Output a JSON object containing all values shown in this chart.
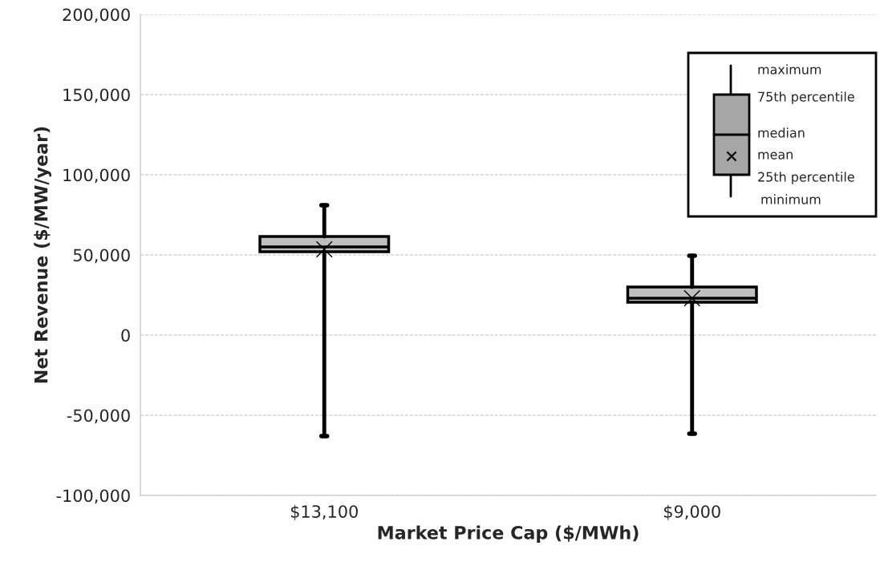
{
  "chart_data": {
    "type": "box",
    "xlabel": "Market Price Cap ($/MWh)",
    "ylabel": "Net Revenue ($/MW/year)",
    "categories": [
      "$13,100",
      "$9,000"
    ],
    "boxes": [
      {
        "low": -63000,
        "q1": 52000,
        "median": 55000,
        "q3": 61500,
        "high": 81000,
        "mean": 53500
      },
      {
        "low": -61500,
        "q1": 20500,
        "median": 23000,
        "q3": 30000,
        "high": 49500,
        "mean": 23000
      }
    ],
    "color": "#bfbfbf",
    "ylim": [
      -100000,
      200000
    ],
    "yticks": [
      {
        "value": -100000,
        "label": "-100,000"
      },
      {
        "value": -50000,
        "label": "-50,000"
      },
      0,
      {
        "value": 50000,
        "label": "50,000"
      },
      {
        "value": 100000,
        "label": "100,000"
      },
      {
        "value": 150000,
        "label": "150,000"
      },
      {
        "value": 200000,
        "label": "200,000"
      }
    ],
    "grid": "y",
    "annotations": [
      "maximum",
      "75th percentile",
      "median",
      "mean",
      "25th percentile",
      "minimum"
    ]
  }
}
